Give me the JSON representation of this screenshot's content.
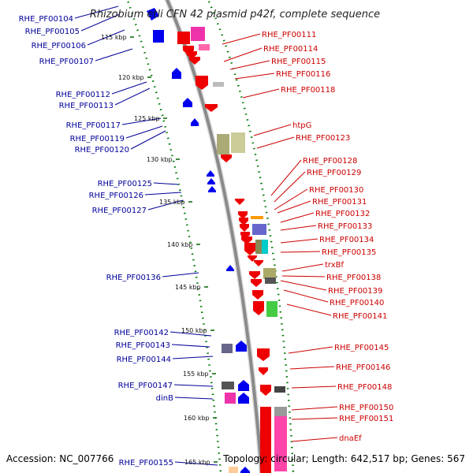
{
  "title": "Rhizobium etli CFN 42 plasmid p42f, complete sequence",
  "footer": {
    "accession": "Accession: NC_007766",
    "topology": "Topology: circular; Length: 642,517 bp; Genes: 567"
  },
  "colors": {
    "backbone": "#999999",
    "forward_track": "#0000cc",
    "reverse_track": "#cc0000",
    "tick_dots": "#007700",
    "left_label": "#000099",
    "right_label": "#cc0000"
  },
  "ticks": [
    "115 kbp",
    "120 kbp",
    "125 kbp",
    "130 kbp",
    "135 kbp",
    "140 kbp",
    "145 kbp",
    "150 kbp",
    "155 kbp",
    "160 kbp",
    "165 kbp"
  ],
  "left_labels": [
    "RHE_PF00104",
    "RHE_PF00105",
    "RHE_PF00106",
    "RHE_PF00107",
    "RHE_PF00112",
    "RHE_PF00113",
    "RHE_PF00117",
    "RHE_PF00119",
    "RHE_PF00120",
    "RHE_PF00125",
    "RHE_PF00126",
    "RHE_PF00127",
    "RHE_PF00136",
    "RHE_PF00142",
    "RHE_PF00143",
    "RHE_PF00144",
    "RHE_PF00147",
    "dinB",
    "RHE_PF00155"
  ],
  "right_labels": [
    "RHE_PF00111",
    "RHE_PF00114",
    "RHE_PF00115",
    "RHE_PF00116",
    "RHE_PF00118",
    "htpG",
    "RHE_PF00123",
    "RHE_PF00128",
    "RHE_PF00129",
    "RHE_PF00130",
    "RHE_PF00131",
    "RHE_PF00132",
    "RHE_PF00133",
    "RHE_PF00134",
    "RHE_PF00135",
    "trxBf",
    "RHE_PF00138",
    "RHE_PF00139",
    "RHE_PF00140",
    "RHE_PF00141",
    "RHE_PF00145",
    "RHE_PF00146",
    "RHE_PF00148",
    "RHE_PF00150",
    "RHE_PF00151",
    "dnaEf"
  ]
}
